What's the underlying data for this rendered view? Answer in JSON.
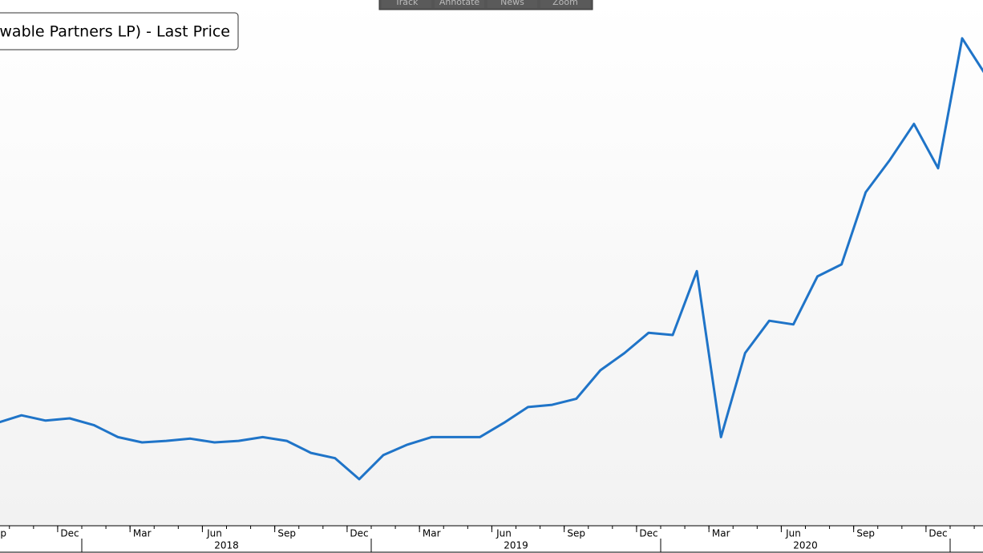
{
  "chart_data": {
    "type": "line",
    "title": "wable Partners LP) - Last Price",
    "toolbar": [
      "Track",
      "Annotate",
      "News",
      "Zoom"
    ],
    "x": [
      "2017-09",
      "2017-10",
      "2017-11",
      "2017-12",
      "2018-01",
      "2018-02",
      "2018-03",
      "2018-04",
      "2018-05",
      "2018-06",
      "2018-07",
      "2018-08",
      "2018-09",
      "2018-10",
      "2018-11",
      "2018-12",
      "2019-01",
      "2019-02",
      "2019-03",
      "2019-04",
      "2019-05",
      "2019-06",
      "2019-07",
      "2019-08",
      "2019-09",
      "2019-10",
      "2019-11",
      "2019-12",
      "2020-01",
      "2020-02",
      "2020-03",
      "2020-04",
      "2020-05",
      "2020-06",
      "2020-07",
      "2020-08",
      "2020-09",
      "2020-10",
      "2020-11",
      "2020-12",
      "2021-01",
      "2021-02"
    ],
    "series": [
      {
        "name": "Last Price",
        "color": "#1f74c8",
        "values": [
          23.7,
          24.7,
          24.0,
          24.3,
          23.4,
          21.8,
          21.1,
          21.3,
          21.6,
          21.1,
          21.3,
          21.8,
          21.3,
          19.7,
          19.0,
          16.2,
          19.4,
          20.8,
          21.8,
          21.8,
          21.8,
          23.7,
          25.8,
          26.1,
          26.9,
          30.7,
          33.0,
          35.7,
          35.4,
          43.9,
          21.8,
          33.0,
          37.3,
          36.8,
          43.2,
          44.8,
          54.4,
          58.7,
          63.5,
          57.6,
          74.9,
          69.9
        ]
      }
    ],
    "ylim": [
      10,
      80
    ],
    "xticks": [
      {
        "value": "2017-09",
        "label": "Sep"
      },
      {
        "value": "2017-12",
        "label": "Dec"
      },
      {
        "value": "2018-03",
        "label": "Mar"
      },
      {
        "value": "2018-06",
        "label": "Jun"
      },
      {
        "value": "2018-09",
        "label": "Sep"
      },
      {
        "value": "2018-12",
        "label": "Dec"
      },
      {
        "value": "2019-03",
        "label": "Mar"
      },
      {
        "value": "2019-06",
        "label": "Jun"
      },
      {
        "value": "2019-09",
        "label": "Sep"
      },
      {
        "value": "2019-12",
        "label": "Dec"
      },
      {
        "value": "2020-03",
        "label": "Mar"
      },
      {
        "value": "2020-06",
        "label": "Jun"
      },
      {
        "value": "2020-09",
        "label": "Sep"
      },
      {
        "value": "2020-12",
        "label": "Dec"
      }
    ],
    "years": [
      "2018",
      "2019",
      "2020"
    ]
  }
}
